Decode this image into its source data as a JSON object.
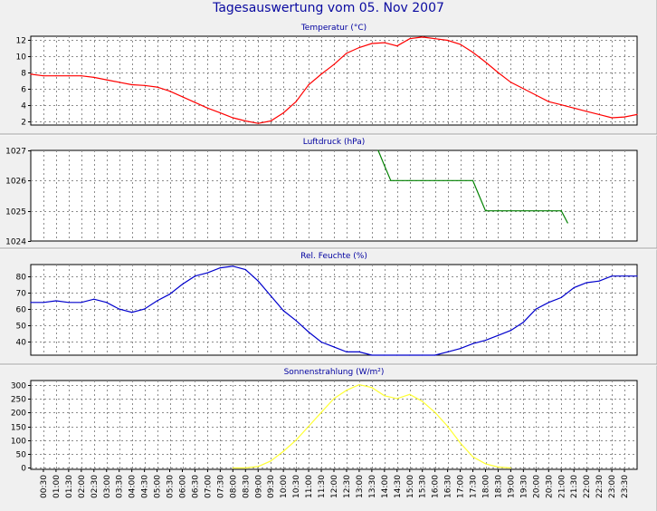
{
  "page_title": "Tagesauswertung vom 05. Nov 2007",
  "colors": {
    "background": "#f0f0f0",
    "plot_bg": "#ffffff",
    "grid": "#8c8c8c",
    "title": "#0a0aa0",
    "temperature": "#ff0000",
    "pressure": "#008000",
    "humidity": "#0000cc",
    "radiation": "#ffff33"
  },
  "chart_data": [
    {
      "type": "line",
      "title": "Temperatur (°C)",
      "ylim": [
        1.5,
        12.5
      ],
      "yticks": [
        2,
        4,
        6,
        8,
        10,
        12
      ],
      "color": "#ff0000",
      "values": [
        7.8,
        7.6,
        7.6,
        7.6,
        7.6,
        7.4,
        7.1,
        6.8,
        6.5,
        6.4,
        6.2,
        5.7,
        5.0,
        4.3,
        3.6,
        3.0,
        2.4,
        2.0,
        1.7,
        2.0,
        3.0,
        4.4,
        6.5,
        7.8,
        9.0,
        10.4,
        11.1,
        11.6,
        11.7,
        11.3,
        12.2,
        12.4,
        12.2,
        12.0,
        11.5,
        10.5,
        9.3,
        8.0,
        6.8,
        6.0,
        5.2,
        4.4,
        4.0,
        3.6,
        3.2,
        2.8,
        2.4,
        2.5,
        2.8
      ]
    },
    {
      "type": "line",
      "title": "Luftdruck (hPa)",
      "ylim": [
        1024,
        1027
      ],
      "yticks": [
        1024,
        1025,
        1026,
        1027
      ],
      "color": "#008000",
      "x": [
        27.5,
        28,
        28.5,
        29,
        30,
        31,
        32,
        33,
        34,
        35,
        35.5,
        36,
        37,
        38,
        39,
        40,
        41,
        42,
        42.5
      ],
      "values": [
        1027,
        1026.5,
        1026,
        1026,
        1026,
        1026,
        1026,
        1026,
        1026,
        1026,
        1025.5,
        1025,
        1025,
        1025,
        1025,
        1025,
        1025,
        1025,
        1024.6
      ]
    },
    {
      "type": "line",
      "title": "Rel. Feuchte (%)",
      "ylim": [
        32,
        87
      ],
      "yticks": [
        40,
        50,
        60,
        70,
        80
      ],
      "color": "#0000cc",
      "values": [
        64,
        64,
        65,
        64,
        64,
        66,
        64,
        60,
        58,
        60,
        65,
        69,
        75,
        80,
        82,
        85,
        86,
        84,
        77,
        68,
        59,
        53,
        46,
        40,
        37,
        34,
        34,
        32,
        31,
        31,
        31,
        31,
        32,
        34,
        36,
        39,
        41,
        44,
        47,
        52,
        60,
        64,
        67,
        73,
        76,
        77,
        80,
        80,
        80
      ]
    },
    {
      "type": "line",
      "title": "Sonnenstrahlung (W/m²)",
      "ylim": [
        -5,
        315
      ],
      "yticks": [
        0,
        50,
        100,
        150,
        200,
        250,
        300
      ],
      "color": "#ffff33",
      "x": [
        16,
        17,
        18,
        19,
        20,
        21,
        22,
        23,
        24,
        25,
        26,
        27,
        28,
        29,
        30,
        31,
        32,
        33,
        34,
        35,
        36,
        37,
        38
      ],
      "values": [
        0,
        0,
        5,
        25,
        60,
        100,
        150,
        200,
        250,
        280,
        300,
        290,
        260,
        250,
        265,
        240,
        200,
        150,
        90,
        40,
        15,
        3,
        0
      ]
    }
  ],
  "x_axis": {
    "tick_labels": [
      "00:30",
      "01:00",
      "01:30",
      "02:00",
      "02:30",
      "03:00",
      "03:30",
      "04:00",
      "04:30",
      "05:00",
      "05:30",
      "06:00",
      "06:30",
      "07:00",
      "07:30",
      "08:00",
      "08:30",
      "09:00",
      "09:30",
      "10:00",
      "10:30",
      "11:00",
      "11:30",
      "12:00",
      "12:30",
      "13:00",
      "13:30",
      "14:00",
      "14:30",
      "15:00",
      "15:30",
      "16:00",
      "16:30",
      "17:00",
      "17:30",
      "18:00",
      "18:30",
      "19:00",
      "19:30",
      "20:00",
      "20:30",
      "21:00",
      "21:30",
      "22:00",
      "22:30",
      "23:00",
      "23:30"
    ]
  }
}
